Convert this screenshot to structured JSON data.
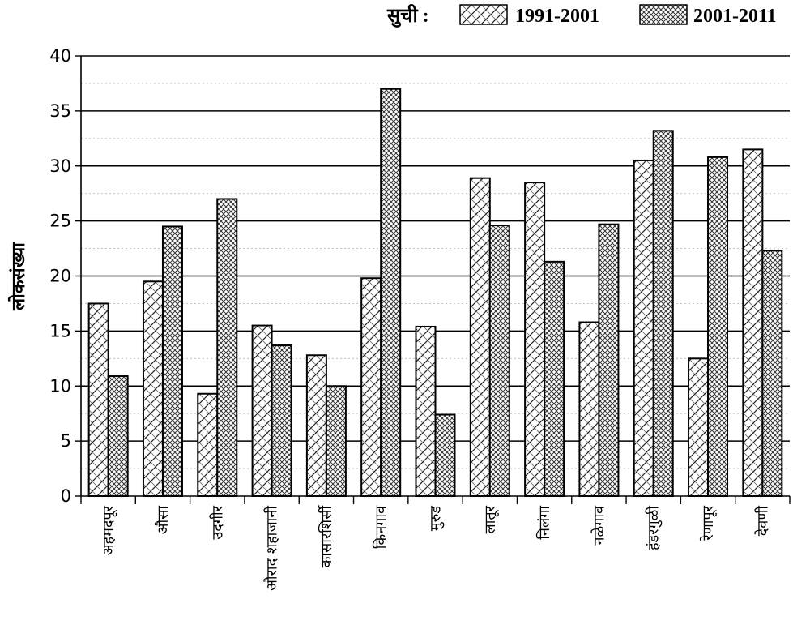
{
  "legend": {
    "title": "सुची :"
  },
  "chart_data": {
    "type": "bar",
    "title": "",
    "xlabel": "",
    "ylabel": "लोकसंख्या",
    "ylim": [
      0,
      40
    ],
    "yticks": [
      0,
      5,
      10,
      15,
      20,
      25,
      30,
      35,
      40
    ],
    "grid": true,
    "legend_position": "top-right",
    "categories": [
      "अहमदपूर",
      "औसा",
      "उदगीर",
      "औराद शहाजानी",
      "कासारशिर्सी",
      "किनगाव",
      "मुरुड",
      "लातूर",
      "निलंगा",
      "नळेगाव",
      "हंडरगुळी",
      "रेणापूर",
      "देवणी"
    ],
    "series": [
      {
        "name": "1991-2001",
        "pattern": "diagonal-cross",
        "values": [
          17.5,
          19.5,
          9.3,
          15.5,
          12.8,
          19.8,
          15.4,
          28.9,
          28.5,
          15.8,
          30.5,
          12.5,
          31.5
        ]
      },
      {
        "name": "2001-2011",
        "pattern": "dense-crosshatch",
        "values": [
          10.9,
          24.5,
          27.0,
          13.7,
          10.0,
          37.0,
          7.4,
          24.6,
          21.3,
          24.7,
          33.2,
          30.8,
          22.3
        ]
      }
    ]
  }
}
